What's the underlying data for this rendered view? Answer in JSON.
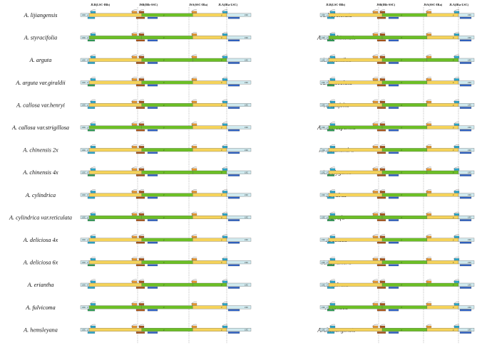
{
  "headers": [
    "JLB(LSC-IRb)",
    "JSB(IRb-SSC)",
    "JSA(SSC-IRa)",
    "JLA(IRa-LSC)"
  ],
  "left_species": [
    "A. lijiangensis",
    "A. styracifolia",
    "A. arguta",
    "A. arguta var.giraldii",
    "A. callosa  var.henryi",
    "A. callosa  var.strigillosa",
    "A. chinensis 2x",
    "A. chinensis 4x",
    "A. cylindrica",
    "A. cylindrica  var.reticulata",
    "A. deliciosa 4x",
    "A. deliciosa 6x",
    "A. eriantha",
    "A. fulvicoma",
    "A. hemsleyana"
  ],
  "right_species": [
    "A. hubeiensis",
    "A. indochinensis",
    "A. kolomikta",
    "A. lanceolata",
    "A. latifolia",
    "A. macrosperma",
    "A. melanandra",
    "A. polygama",
    "A. rubus",
    "A. rufa",
    "A. setosa",
    "A. tetramera",
    "A. valvata",
    "A. venosa",
    "A. zhejiangensis"
  ],
  "region_labels": [
    "LSC",
    "IRb",
    "SSC",
    "IRa",
    "LSC"
  ],
  "colors": {
    "lsc": "#cfe9ee",
    "irb": "#f5d35a",
    "ssc": "#6cbf26",
    "ira": "#f5d35a",
    "gene_rps19": "#2aa6c8",
    "gene_ndhF": "#2f62c4",
    "gene_ycf1": "#a85418",
    "gene_orange": "#e8962c",
    "gene_green": "#2e9a55",
    "boundary_line": "#9a9a9a"
  }
}
